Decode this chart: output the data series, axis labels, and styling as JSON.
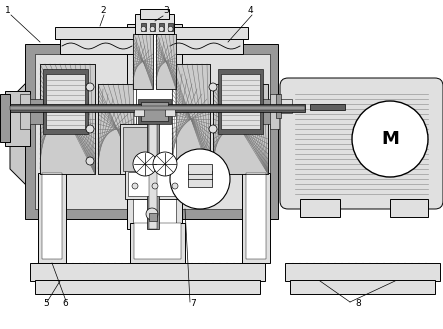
{
  "bg_color": "#ffffff",
  "lc": "#000000",
  "dark_gray": "#606060",
  "mid_gray": "#999999",
  "light_gray": "#c8c8c8",
  "lighter_gray": "#e0e0e0",
  "hatch_gray": "#888888",
  "motor_label": "M",
  "fig_width": 4.43,
  "fig_height": 3.29,
  "dpi": 100,
  "label_fs": 6.5,
  "motor_fs": 13
}
